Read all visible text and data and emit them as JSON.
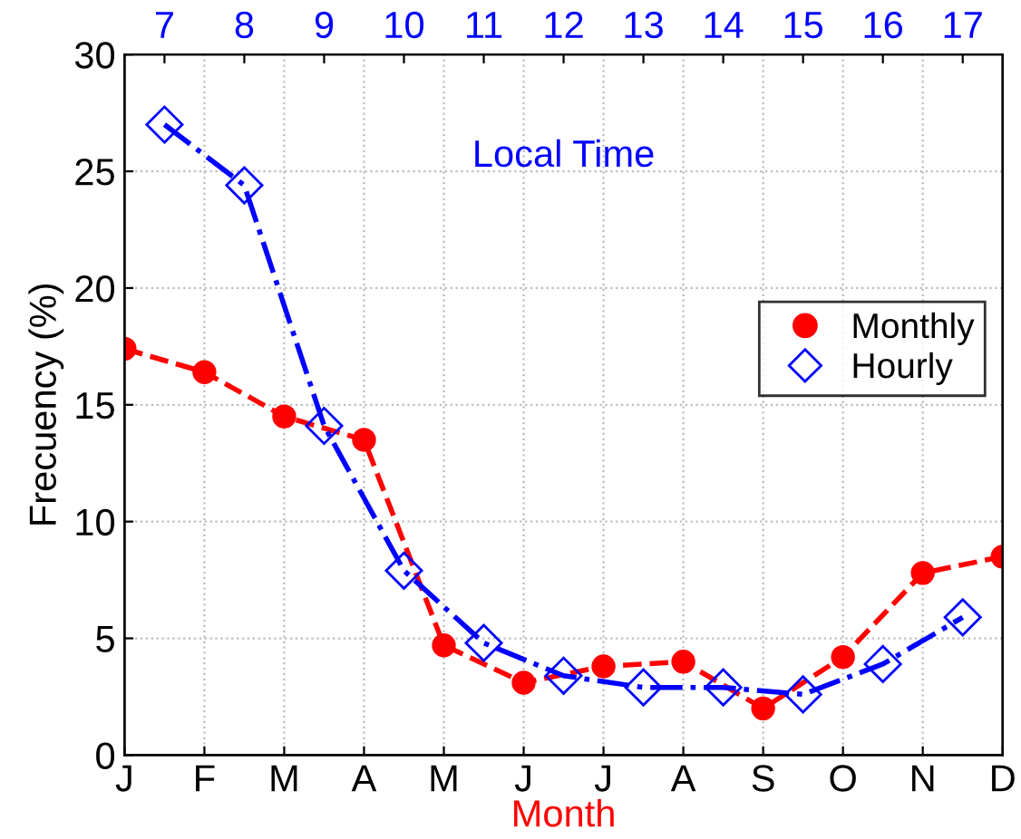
{
  "chart_data": {
    "type": "line",
    "categories": [
      "J",
      "F",
      "M",
      "A",
      "M",
      "J",
      "J",
      "A",
      "S",
      "O",
      "N",
      "D"
    ],
    "xlabel": "Month",
    "ylabel": "Frecuency (%)",
    "x2label": "Local Time",
    "ylim": [
      0,
      30
    ],
    "yticks": [
      0,
      5,
      10,
      15,
      20,
      25,
      30
    ],
    "x2lim": [
      6.5,
      17.5
    ],
    "x2ticks": [
      7,
      8,
      9,
      10,
      11,
      12,
      13,
      14,
      15,
      16,
      17
    ],
    "grid": true,
    "legend": "right",
    "series": [
      {
        "name": "Monthly",
        "color": "#ff0000",
        "marker": "circle",
        "line_style": "dashed",
        "values": [
          17.4,
          16.4,
          14.5,
          13.5,
          4.7,
          3.1,
          3.8,
          4.0,
          2.0,
          4.2,
          7.8,
          8.5
        ]
      },
      {
        "name": "Hourly",
        "color": "#0000ff",
        "marker": "diamond",
        "line_style": "dashdot",
        "axis": "x2",
        "x": [
          7,
          8,
          9,
          10,
          11,
          12,
          13,
          14,
          15,
          16,
          17
        ],
        "values": [
          27,
          24.4,
          14.1,
          7.9,
          4.8,
          3.4,
          2.9,
          2.9,
          2.6,
          3.9,
          5.9
        ]
      }
    ]
  }
}
